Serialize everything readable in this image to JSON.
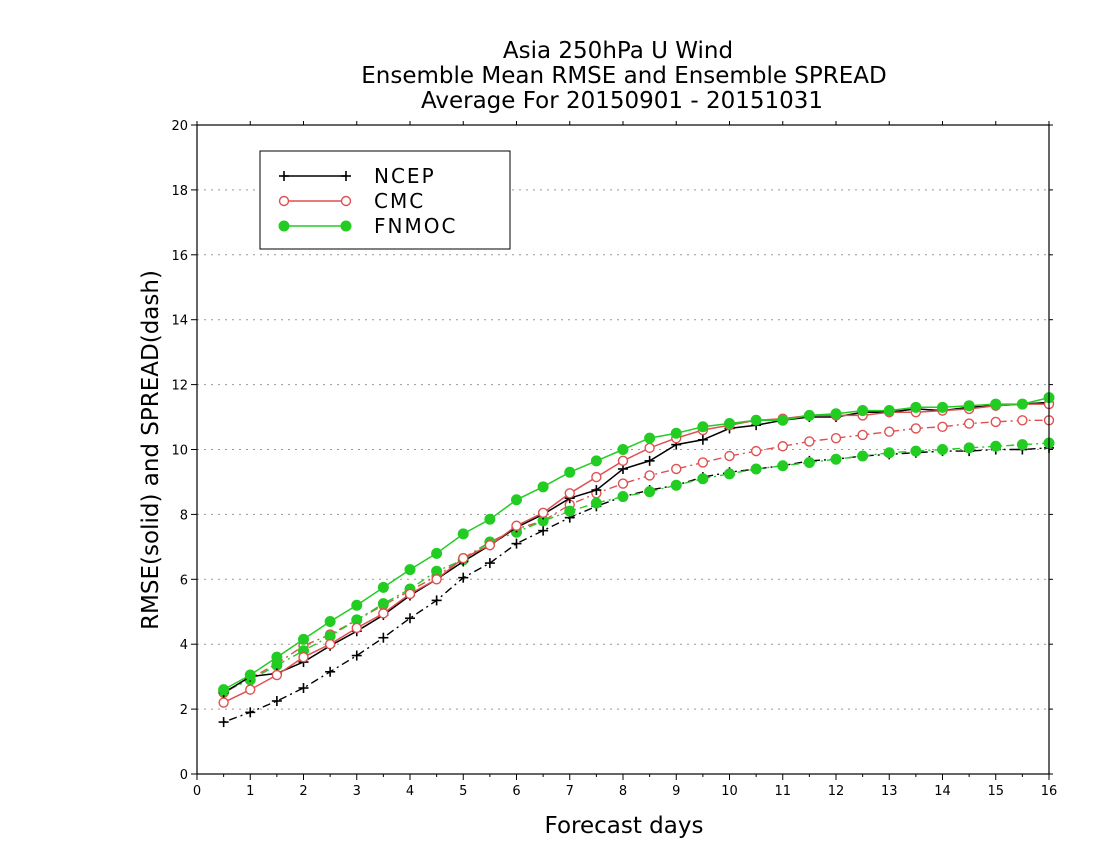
{
  "chart_data": {
    "type": "line",
    "title": [
      "Asia 250hPa U Wind",
      "Ensemble Mean RMSE and Ensemble SPREAD",
      "Average For 20150901 - 20151031"
    ],
    "xlabel": "Forecast days",
    "ylabel": "RMSE(solid) and SPREAD(dash)",
    "xlim": [
      0,
      16
    ],
    "ylim": [
      0,
      20
    ],
    "xticks": [
      0,
      1,
      2,
      3,
      4,
      5,
      6,
      7,
      8,
      9,
      10,
      11,
      12,
      13,
      14,
      15,
      16
    ],
    "yticks": [
      0,
      2,
      4,
      6,
      8,
      10,
      12,
      14,
      16,
      18,
      20
    ],
    "grid": "horizontal dotted",
    "legend_position": "top-left",
    "x": [
      0.5,
      1.0,
      1.5,
      2.0,
      2.5,
      3.0,
      3.5,
      4.0,
      4.5,
      5.0,
      5.5,
      6.0,
      6.5,
      7.0,
      7.5,
      8.0,
      8.5,
      9.0,
      9.5,
      10.0,
      10.5,
      11.0,
      11.5,
      12.0,
      12.5,
      13.0,
      13.5,
      14.0,
      14.5,
      15.0,
      15.5,
      16.0
    ],
    "series": [
      {
        "name": "NCEP",
        "color": "#000000",
        "marker": "plus",
        "rmse": [
          2.5,
          3.0,
          3.1,
          3.45,
          3.95,
          4.4,
          4.9,
          5.5,
          6.0,
          6.55,
          7.05,
          7.6,
          8.0,
          8.5,
          8.75,
          9.4,
          9.65,
          10.15,
          10.3,
          10.65,
          10.75,
          10.9,
          11.0,
          11.0,
          11.15,
          11.15,
          11.25,
          11.2,
          11.3,
          11.35,
          11.4,
          11.45
        ],
        "spread": [
          1.6,
          1.9,
          2.25,
          2.65,
          3.15,
          3.65,
          4.2,
          4.8,
          5.35,
          6.05,
          6.5,
          7.1,
          7.5,
          7.9,
          8.25,
          8.55,
          8.75,
          8.9,
          9.15,
          9.3,
          9.4,
          9.5,
          9.65,
          9.7,
          9.8,
          9.85,
          9.9,
          9.95,
          9.95,
          10.0,
          10.0,
          10.05
        ]
      },
      {
        "name": "CMC",
        "color": "#e05050",
        "marker": "open-circle",
        "rmse": [
          2.2,
          2.6,
          3.05,
          3.6,
          4.0,
          4.5,
          4.95,
          5.55,
          6.0,
          6.65,
          7.05,
          7.65,
          8.05,
          8.65,
          9.15,
          9.65,
          10.05,
          10.35,
          10.6,
          10.75,
          10.9,
          10.95,
          11.05,
          11.05,
          11.05,
          11.15,
          11.15,
          11.2,
          11.25,
          11.35,
          11.4,
          11.4
        ],
        "spread": [
          2.5,
          2.95,
          3.4,
          3.95,
          4.3,
          4.75,
          5.2,
          5.65,
          6.1,
          6.65,
          7.15,
          7.55,
          7.8,
          8.3,
          8.65,
          8.95,
          9.2,
          9.4,
          9.6,
          9.8,
          9.95,
          10.1,
          10.25,
          10.35,
          10.45,
          10.55,
          10.65,
          10.7,
          10.8,
          10.85,
          10.9,
          10.9
        ]
      },
      {
        "name": "FNMOC",
        "color": "#22cc22",
        "marker": "filled-circle",
        "rmse": [
          2.6,
          3.05,
          3.6,
          4.15,
          4.7,
          5.2,
          5.75,
          6.3,
          6.8,
          7.4,
          7.85,
          8.45,
          8.85,
          9.3,
          9.65,
          10.0,
          10.35,
          10.5,
          10.7,
          10.8,
          10.9,
          10.9,
          11.05,
          11.1,
          11.2,
          11.2,
          11.3,
          11.3,
          11.35,
          11.4,
          11.4,
          11.6
        ],
        "spread": [
          2.55,
          2.9,
          3.35,
          3.8,
          4.25,
          4.75,
          5.25,
          5.7,
          6.25,
          6.6,
          7.15,
          7.45,
          7.8,
          8.1,
          8.35,
          8.55,
          8.7,
          8.9,
          9.1,
          9.25,
          9.4,
          9.5,
          9.6,
          9.7,
          9.8,
          9.9,
          9.95,
          10.0,
          10.05,
          10.1,
          10.15,
          10.2
        ]
      }
    ]
  }
}
